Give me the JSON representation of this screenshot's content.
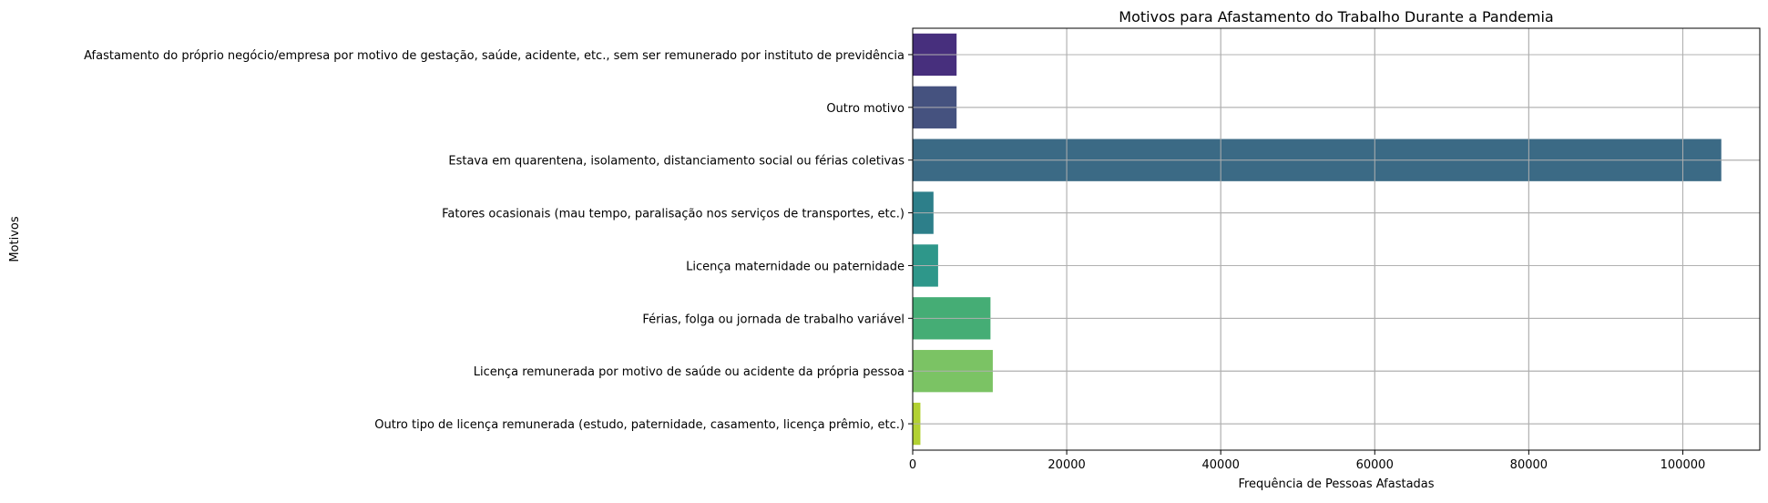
{
  "chart_data": {
    "type": "bar",
    "orientation": "horizontal",
    "title": "Motivos para Afastamento do Trabalho Durante a Pandemia",
    "xlabel": "Frequência de Pessoas Afastadas",
    "ylabel": "Motivos",
    "xlim": [
      0,
      110000
    ],
    "grid": true,
    "x_ticks": [
      0,
      20000,
      40000,
      60000,
      80000,
      100000
    ],
    "categories": [
      "Afastamento do próprio negócio/empresa por motivo de gestação, saúde, acidente, etc., sem ser remunerado por instituto de previdência",
      "Outro motivo",
      "Estava em quarentena, isolamento, distanciamento social ou férias coletivas",
      "Fatores ocasionais (mau tempo, paralisação nos serviços de transportes, etc.)",
      "Licença maternidade ou paternidade",
      "Férias, folga ou jornada de trabalho variável",
      "Licença remunerada por motivo de saúde ou acidente da própria pessoa",
      "Outro tipo de licença remunerada (estudo, paternidade, casamento, licença prêmio, etc.)"
    ],
    "values": [
      5700,
      5700,
      105000,
      2700,
      3300,
      10100,
      10400,
      1000
    ],
    "colors": [
      "#472f7d",
      "#45527f",
      "#3b6a85",
      "#2d7f8a",
      "#2e978a",
      "#45ad75",
      "#7bc364",
      "#b2d132"
    ]
  }
}
